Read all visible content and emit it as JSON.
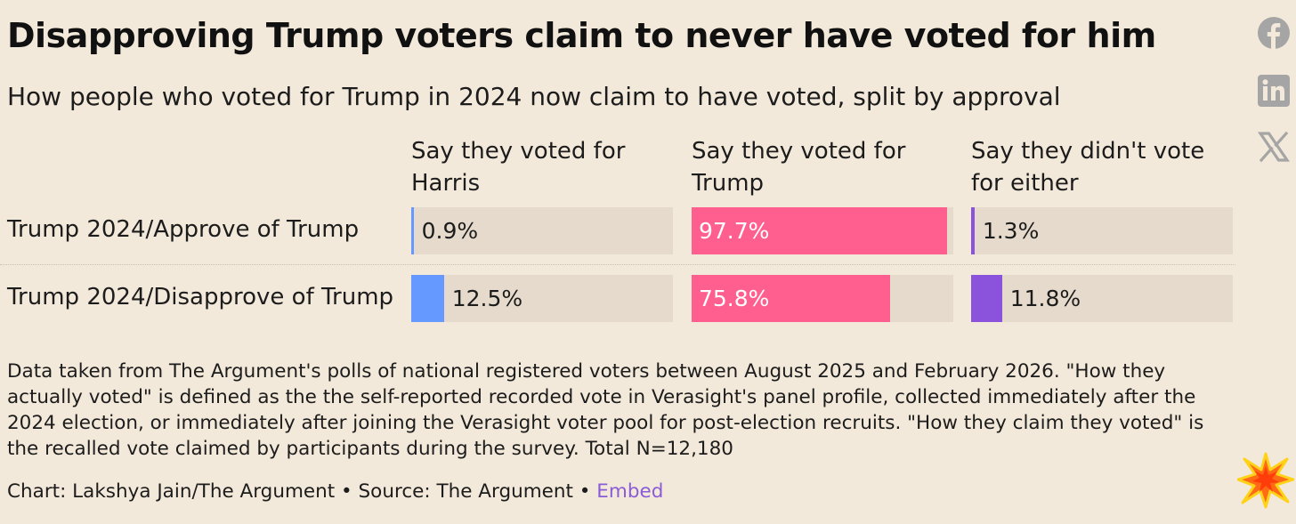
{
  "title": "Disapproving Trump voters claim to never have voted for him",
  "subtitle": "How people who voted for Trump in 2024 now claim to have voted, split by approval",
  "chart_data": {
    "type": "bar",
    "title": "Disapproving Trump voters claim to never have voted for him",
    "subtitle": "How people who voted for Trump in 2024 now claim to have voted, split by approval",
    "categories": [
      "Trump 2024/Approve of Trump",
      "Trump 2024/Disapprove of Trump"
    ],
    "series": [
      {
        "name": "Say they voted for Harris",
        "color": "#6699ff",
        "values": [
          0.9,
          12.5
        ],
        "labels": [
          "0.9%",
          "12.5%"
        ]
      },
      {
        "name": "Say they voted for Trump",
        "color": "#ff5f8f",
        "values": [
          97.7,
          75.8
        ],
        "labels": [
          "97.7%",
          "75.8%"
        ]
      },
      {
        "name": "Say they didn't vote for either",
        "color": "#8b52dc",
        "values": [
          1.3,
          11.8
        ],
        "labels": [
          "1.3%",
          "11.8%"
        ]
      }
    ],
    "xlim": [
      0,
      100
    ],
    "unit": "%",
    "legend": "column headers"
  },
  "footnote": "Data taken from The Argument's polls of national registered voters between August 2025 and February 2026. \"How they actually voted\" is defined as the the self-reported recorded vote in Verasight's panel profile, collected immediately after the 2024 election, or immediately after joining the Verasight voter pool for post-election recruits. \"How they claim they voted\" is the recalled vote claimed by participants during the survey. Total N=12,180",
  "credit": {
    "text": "Chart: Lakshya Jain/The Argument • Source: The Argument • ",
    "embed_label": "Embed"
  },
  "social": {
    "facebook_icon": "facebook-icon",
    "linkedin_icon": "linkedin-icon",
    "x_icon": "x-icon",
    "icon_color": "#a5a5a5"
  },
  "brand_icon": "starburst-icon",
  "colors": {
    "background": "#f3e9da",
    "track": "#e5dacb",
    "embed": "#8a5cd6"
  }
}
